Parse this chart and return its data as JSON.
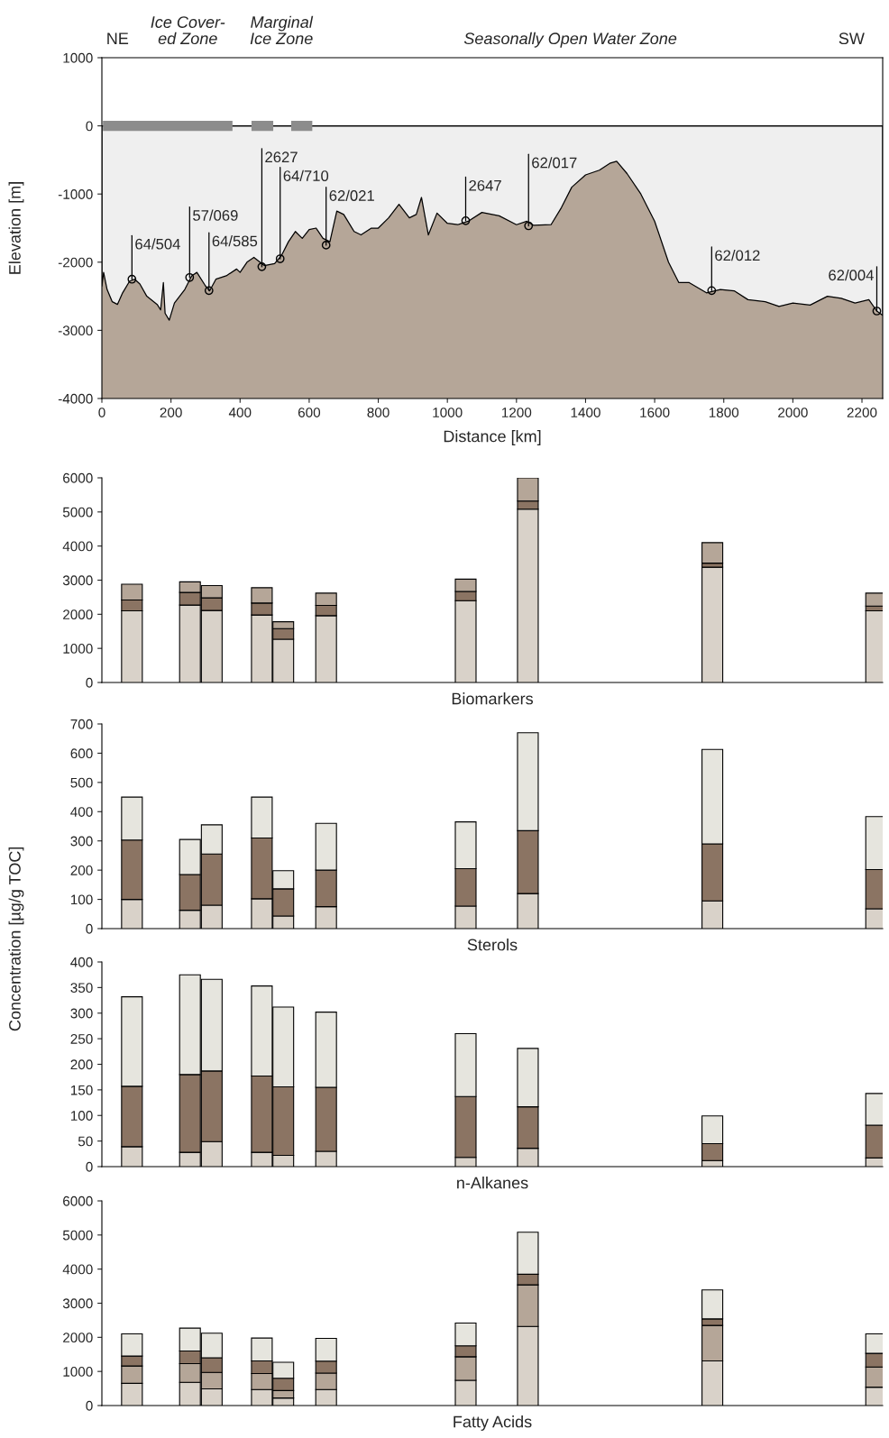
{
  "chart_data": [
    {
      "type": "area",
      "xlabel": "Distance [km]",
      "ylabel": "Elevation [m]",
      "xlim": [
        0,
        2260
      ],
      "xticks": [
        0,
        200,
        400,
        600,
        800,
        1000,
        1200,
        1400,
        1600,
        1800,
        2000,
        2200
      ],
      "ylim": [
        -4000,
        1000
      ],
      "yticks": [
        -4000,
        -3000,
        -2000,
        -1000,
        0,
        1000
      ],
      "grid": false,
      "x": [
        0,
        5,
        15,
        30,
        45,
        60,
        80,
        95,
        110,
        130,
        160,
        170,
        178,
        183,
        195,
        210,
        240,
        260,
        275,
        300,
        312,
        330,
        360,
        390,
        400,
        420,
        440,
        470,
        500,
        520,
        540,
        560,
        580,
        600,
        620,
        640,
        660,
        680,
        700,
        730,
        750,
        780,
        800,
        830,
        860,
        890,
        910,
        925,
        945,
        970,
        1000,
        1030,
        1060,
        1100,
        1150,
        1200,
        1230,
        1250,
        1300,
        1330,
        1360,
        1400,
        1440,
        1470,
        1490,
        1520,
        1560,
        1600,
        1640,
        1670,
        1700,
        1750,
        1790,
        1830,
        1870,
        1920,
        1960,
        2000,
        2050,
        2100,
        2140,
        2180,
        2220,
        2243,
        2260
      ],
      "series": [
        {
          "color": "#efefef",
          "values": [
            -2350,
            -2150,
            -2400,
            -2580,
            -2620,
            -2450,
            -2280,
            -2250,
            -2320,
            -2500,
            -2620,
            -2700,
            -2300,
            -2750,
            -2850,
            -2600,
            -2400,
            -2200,
            -2150,
            -2350,
            -2420,
            -2250,
            -2200,
            -2100,
            -2150,
            -2000,
            -1930,
            -2050,
            -2020,
            -1900,
            -1700,
            -1550,
            -1650,
            -1520,
            -1500,
            -1650,
            -1700,
            -1250,
            -1300,
            -1550,
            -1600,
            -1500,
            -1500,
            -1350,
            -1150,
            -1350,
            -1300,
            -1050,
            -1600,
            -1280,
            -1430,
            -1450,
            -1400,
            -1270,
            -1320,
            -1450,
            -1400,
            -1460,
            -1450,
            -1200,
            -900,
            -720,
            -650,
            -550,
            -520,
            -700,
            -1000,
            -1400,
            -2000,
            -2300,
            -2300,
            -2450,
            -2400,
            -2420,
            -2550,
            -2580,
            -2650,
            -2600,
            -2630,
            -2500,
            -2530,
            -2600,
            -2550,
            -2717,
            -2780
          ]
        },
        {
          "type": "line",
          "line_style": "solid",
          "color": "#8c8c8c",
          "x": [
            3,
            378,
            405,
            433,
            496,
            520,
            548,
            609
          ],
          "values": [
            0,
            0,
            null,
            0,
            0,
            null,
            0,
            0
          ]
        }
      ],
      "ref_lines": [
        {
          "axis": "y",
          "value": 0,
          "color": "#000000"
        }
      ],
      "bands": [
        {
          "axis": "y",
          "from": -4000,
          "to": 0,
          "color": "#b5a698"
        }
      ],
      "annotations": [
        "NE",
        "Ice Cover-\ned Zone",
        "Marginal\nIce Zone",
        "Seasonally Open Water Zone",
        "SW",
        {
          "text": "64/504",
          "x": 87,
          "y": -2250
        },
        {
          "text": "57/069",
          "x": 254,
          "y": -2225
        },
        {
          "text": "64/585",
          "x": 310,
          "y": -2417
        },
        {
          "text": "2627",
          "x": 463,
          "y": -2067
        },
        {
          "text": "64/710",
          "x": 516,
          "y": -1950
        },
        {
          "text": "62/021",
          "x": 649,
          "y": -1750
        },
        {
          "text": "2647",
          "x": 1053,
          "y": -1392
        },
        {
          "text": "62/017",
          "x": 1235,
          "y": -1467
        },
        {
          "text": "62/012",
          "x": 1765,
          "y": -2417
        },
        {
          "text": "62/004",
          "x": 2243,
          "y": -2717
        }
      ]
    },
    {
      "type": "bar",
      "stacked": true,
      "xlabel": "Biomarkers",
      "xlim": [
        0,
        2260
      ],
      "ylim": [
        0,
        6000
      ],
      "yticks": [
        0,
        1000,
        2000,
        3000,
        4000,
        5000,
        6000
      ],
      "tick_labels": "y",
      "grid": false,
      "x": [
        87,
        255,
        318,
        463,
        525,
        649,
        1053,
        1233,
        1767,
        2241
      ],
      "series": [
        {
          "color": "#d9d2c9",
          "values": [
            2100,
            2270,
            2110,
            1980,
            1270,
            1960,
            2400,
            5080,
            3380,
            2100
          ]
        },
        {
          "color": "#8b7463",
          "values": [
            320,
            370,
            370,
            350,
            310,
            300,
            270,
            240,
            120,
            140
          ]
        },
        {
          "color": "#b5a698",
          "values": [
            460,
            310,
            360,
            450,
            200,
            360,
            360,
            680,
            600,
            380
          ]
        }
      ]
    },
    {
      "type": "bar",
      "stacked": true,
      "xlabel": "Sterols",
      "ylabel": "Concentration [µg/g TOC]",
      "xlim": [
        0,
        2260
      ],
      "ylim": [
        0,
        700
      ],
      "yticks": [
        0,
        100,
        200,
        300,
        400,
        500,
        600,
        700
      ],
      "tick_labels": "y",
      "grid": false,
      "x": [
        87,
        255,
        318,
        463,
        525,
        649,
        1053,
        1233,
        1767,
        2241
      ],
      "series": [
        {
          "color": "#d9d2c9",
          "values": [
            100,
            63,
            80,
            102,
            43,
            75,
            77,
            120,
            95,
            68
          ]
        },
        {
          "color": "#8b7463",
          "values": [
            203,
            122,
            175,
            208,
            93,
            125,
            128,
            215,
            195,
            134
          ]
        },
        {
          "color": "#e6e5de",
          "values": [
            147,
            120,
            100,
            140,
            62,
            160,
            160,
            335,
            323,
            181
          ]
        }
      ]
    },
    {
      "type": "bar",
      "stacked": true,
      "xlabel": "n-Alkanes",
      "xlim": [
        0,
        2260
      ],
      "ylim": [
        0,
        400
      ],
      "yticks": [
        0,
        50,
        100,
        150,
        200,
        250,
        300,
        350,
        400
      ],
      "tick_labels": "y",
      "grid": false,
      "x": [
        87,
        255,
        318,
        463,
        525,
        649,
        1053,
        1233,
        1767,
        2241
      ],
      "series": [
        {
          "color": "#d9d2c9",
          "values": [
            39,
            28,
            49,
            28,
            22,
            30,
            18,
            36,
            12,
            17
          ]
        },
        {
          "color": "#8b7463",
          "values": [
            118,
            152,
            138,
            149,
            134,
            125,
            119,
            81,
            33,
            64
          ]
        },
        {
          "color": "#e6e5de",
          "values": [
            175,
            195,
            179,
            176,
            156,
            147,
            123,
            114,
            54,
            62
          ]
        }
      ]
    },
    {
      "type": "bar",
      "stacked": true,
      "xlabel": "Fatty Acids",
      "xlim": [
        0,
        2260
      ],
      "ylim": [
        0,
        6000
      ],
      "yticks": [
        0,
        1000,
        2000,
        3000,
        4000,
        5000,
        6000
      ],
      "tick_labels": "y",
      "grid": false,
      "x": [
        87,
        255,
        318,
        463,
        525,
        649,
        1053,
        1233,
        1767,
        2241
      ],
      "series": [
        {
          "color": "#d9d2c9",
          "values": [
            650,
            680,
            490,
            470,
            220,
            470,
            740,
            2320,
            1310,
            540
          ]
        },
        {
          "color": "#b5a698",
          "values": [
            510,
            550,
            480,
            470,
            220,
            480,
            690,
            1220,
            1040,
            590
          ]
        },
        {
          "color": "#8b7463",
          "values": [
            290,
            370,
            430,
            370,
            360,
            350,
            320,
            310,
            190,
            400
          ]
        },
        {
          "color": "#e6e5de",
          "values": [
            650,
            670,
            720,
            670,
            470,
            670,
            670,
            1230,
            850,
            570
          ]
        }
      ]
    }
  ]
}
